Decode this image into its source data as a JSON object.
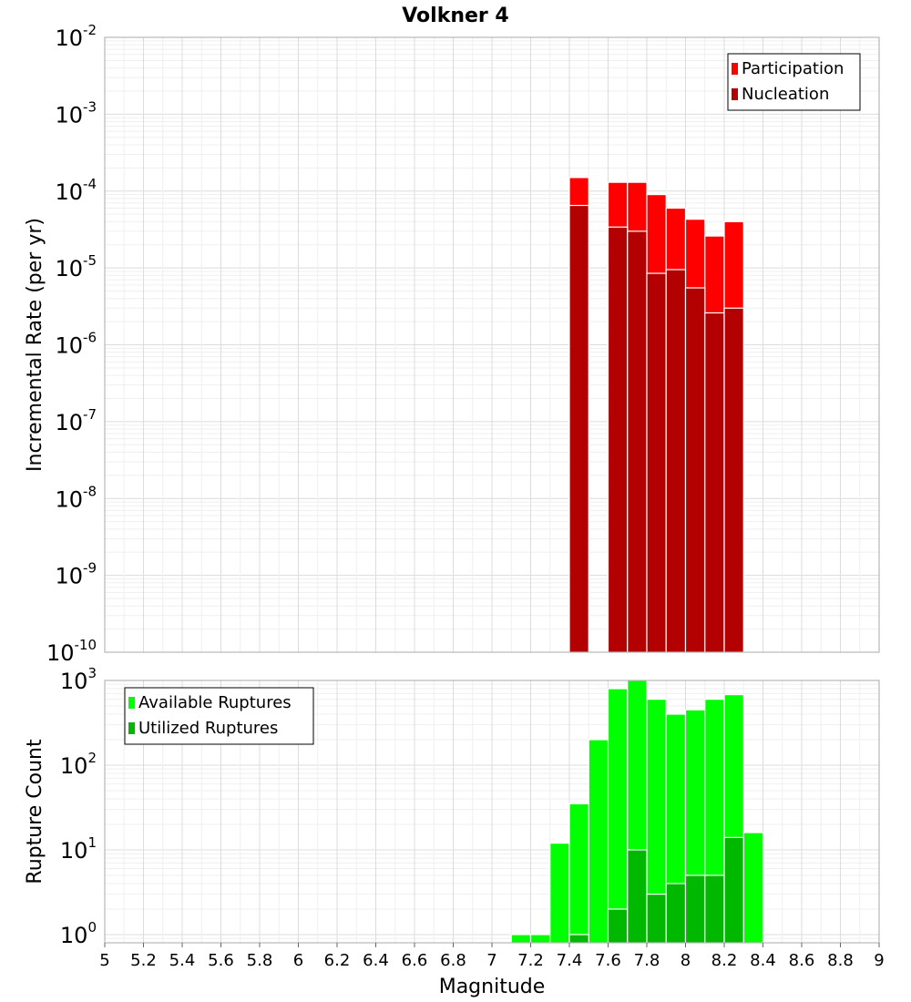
{
  "title": "Volkner 4",
  "chart_data": [
    {
      "type": "bar",
      "panel": "top",
      "title": "Volkner 4",
      "xlabel": "Magnitude",
      "ylabel": "Incremental Rate (per yr)",
      "yscale": "log",
      "ylim": [
        1e-10,
        0.01
      ],
      "xlim": [
        5,
        9
      ],
      "x_ticks": [
        "5",
        "5.2",
        "5.4",
        "5.6",
        "5.8",
        "6",
        "6.2",
        "6.4",
        "6.6",
        "6.8",
        "7",
        "7.2",
        "7.4",
        "7.6",
        "7.8",
        "8",
        "8.2",
        "8.4",
        "8.6",
        "8.8",
        "9"
      ],
      "y_ticks": [
        {
          "base": "10",
          "exp": "-2"
        },
        {
          "base": "10",
          "exp": "-3"
        },
        {
          "base": "10",
          "exp": "-4"
        },
        {
          "base": "10",
          "exp": "-5"
        },
        {
          "base": "10",
          "exp": "-6"
        },
        {
          "base": "10",
          "exp": "-7"
        },
        {
          "base": "10",
          "exp": "-8"
        },
        {
          "base": "10",
          "exp": "-9"
        },
        {
          "base": "10",
          "exp": "-10"
        }
      ],
      "legend_position": "top-right",
      "series": [
        {
          "name": "Participation",
          "color": "#ff0000",
          "x": [
            7.45,
            7.65,
            7.75,
            7.85,
            7.95,
            8.05,
            8.15,
            8.25
          ],
          "values": [
            0.00015,
            0.00013,
            0.00013,
            9e-05,
            6e-05,
            4.3e-05,
            2.6e-05,
            4e-05
          ]
        },
        {
          "name": "Nucleation",
          "color": "#b30000",
          "x": [
            7.45,
            7.65,
            7.75,
            7.85,
            7.95,
            8.05,
            8.15,
            8.25
          ],
          "values": [
            6.5e-05,
            3.4e-05,
            3e-05,
            8.5e-06,
            9.5e-06,
            5.5e-06,
            2.6e-06,
            3e-06
          ]
        }
      ]
    },
    {
      "type": "bar",
      "panel": "bottom",
      "xlabel": "Magnitude",
      "ylabel": "Rupture Count",
      "yscale": "log",
      "ylim": [
        0.8,
        1000
      ],
      "xlim": [
        5,
        9
      ],
      "y_ticks": [
        {
          "base": "10",
          "exp": "3"
        },
        {
          "base": "10",
          "exp": "2"
        },
        {
          "base": "10",
          "exp": "1"
        },
        {
          "base": "10",
          "exp": "0"
        }
      ],
      "legend_position": "top-left",
      "series": [
        {
          "name": "Available Ruptures",
          "color": "#00ff00",
          "x": [
            7.15,
            7.25,
            7.35,
            7.45,
            7.55,
            7.65,
            7.75,
            7.85,
            7.95,
            8.05,
            8.15,
            8.25,
            8.35
          ],
          "values": [
            1,
            1,
            12,
            35,
            200,
            800,
            1000,
            600,
            400,
            450,
            600,
            680,
            16
          ]
        },
        {
          "name": "Utilized Ruptures",
          "color": "#00b800",
          "x": [
            7.45,
            7.65,
            7.75,
            7.85,
            7.95,
            8.05,
            8.15,
            8.25
          ],
          "values": [
            1,
            2,
            10,
            3,
            4,
            5,
            5,
            14
          ]
        }
      ]
    }
  ]
}
